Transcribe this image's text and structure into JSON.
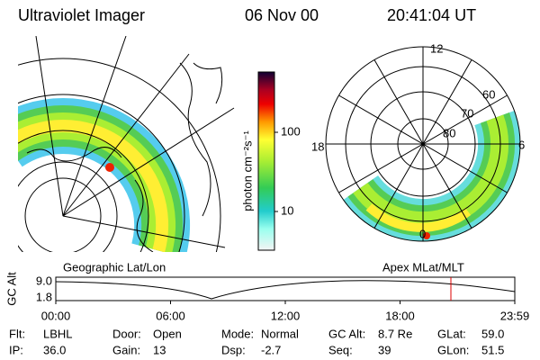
{
  "header": {
    "title": "Ultraviolet Imager",
    "date": "06 Nov 00",
    "time": "20:41:04 UT"
  },
  "colorbar": {
    "label": "photon cm⁻²s⁻¹",
    "ticks": [
      "100",
      "10"
    ]
  },
  "polar": {
    "mlt_labels": [
      "12",
      "18",
      "6",
      "0"
    ],
    "lat_labels": [
      "60",
      "70",
      "80"
    ]
  },
  "panels": {
    "left": "Geographic Lat/Lon",
    "right": "Apex MLat/MLT"
  },
  "altitude": {
    "ylabel": "GC Alt",
    "yticks": [
      "9.0",
      "1.8"
    ],
    "xticks": [
      "00:00",
      "06:00",
      "12:00",
      "18:00",
      "23:59"
    ]
  },
  "footer": {
    "rows": [
      [
        {
          "key": "Flt:",
          "value": "LBHL"
        },
        {
          "key": "Door:",
          "value": "Open"
        },
        {
          "key": "Mode:",
          "value": "Normal"
        },
        {
          "key": "GC Alt:",
          "value": "8.7 Re"
        },
        {
          "key": "GLat:",
          "value": "59.0"
        }
      ],
      [
        {
          "key": "IP:",
          "value": "36.0"
        },
        {
          "key": "Gain:",
          "value": "13"
        },
        {
          "key": "Dsp:",
          "value": "-2.7"
        },
        {
          "key": "Seq:",
          "value": "39"
        },
        {
          "key": "GLon:",
          "value": "51.5"
        }
      ]
    ]
  }
}
